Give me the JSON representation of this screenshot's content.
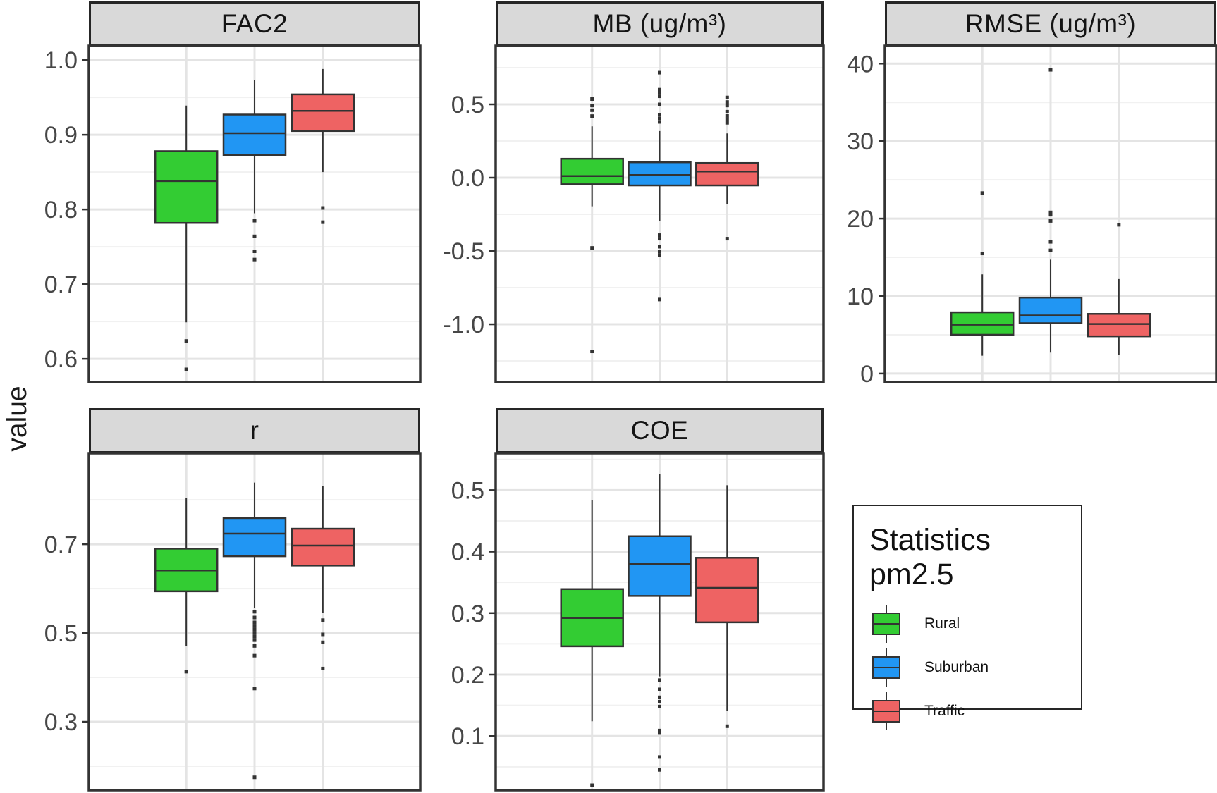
{
  "figure": {
    "y_axis_title": "value"
  },
  "legend": {
    "title": "Statistics pm2.5",
    "items": [
      {
        "label": "Rural",
        "color": "#33cc33"
      },
      {
        "label": "Suburban",
        "color": "#2196f3"
      },
      {
        "label": "Traffic",
        "color": "#ee6363"
      }
    ]
  },
  "style": {
    "box_stroke": "#333333",
    "grid_major": "#e4e4e4",
    "grid_minor": "#f1f1f1",
    "strip_bg": "#d9d9d9",
    "tick_label_color": "#474747",
    "panel_border": "#333333"
  },
  "chart_data": [
    {
      "type": "boxplot",
      "facet": "FAC2",
      "categories": [
        "Rural",
        "Suburban",
        "Traffic"
      ],
      "ylim": [
        0.569,
        1.019
      ],
      "yticks": [
        {
          "v": 1.0,
          "label": "1.0"
        },
        {
          "v": 0.9,
          "label": "0.9"
        },
        {
          "v": 0.8,
          "label": "0.8"
        },
        {
          "v": 0.7,
          "label": "0.7"
        },
        {
          "v": 0.6,
          "label": "0.6"
        }
      ],
      "yticks_minor": [
        0.95,
        0.85,
        0.75,
        0.65
      ],
      "series": [
        {
          "name": "Rural",
          "color": "#33cc33",
          "whisker_low": 0.649,
          "q1": 0.782,
          "median": 0.838,
          "q3": 0.878,
          "whisker_high": 0.939,
          "outliers": [
            0.624,
            0.586
          ]
        },
        {
          "name": "Suburban",
          "color": "#2196f3",
          "whisker_low": 0.795,
          "q1": 0.873,
          "median": 0.902,
          "q3": 0.927,
          "whisker_high": 0.973,
          "outliers": [
            0.785,
            0.764,
            0.744,
            0.733
          ]
        },
        {
          "name": "Traffic",
          "color": "#ee6363",
          "whisker_low": 0.85,
          "q1": 0.905,
          "median": 0.932,
          "q3": 0.954,
          "whisker_high": 0.988,
          "outliers": [
            0.802,
            0.783
          ]
        }
      ]
    },
    {
      "type": "boxplot",
      "facet": "MB (ug/m³)",
      "categories": [
        "Rural",
        "Suburban",
        "Traffic"
      ],
      "ylim": [
        -1.394,
        0.899
      ],
      "yticks": [
        {
          "v": 0.5,
          "label": "0.5"
        },
        {
          "v": 0.0,
          "label": "0.0"
        },
        {
          "v": -0.5,
          "label": "-0.5"
        },
        {
          "v": -1.0,
          "label": "-1.0"
        }
      ],
      "yticks_minor": [
        0.75,
        0.25,
        -0.25,
        -0.75,
        -1.25
      ],
      "series": [
        {
          "name": "Rural",
          "color": "#33cc33",
          "whisker_low": -0.195,
          "q1": -0.045,
          "median": 0.011,
          "q3": 0.129,
          "whisker_high": 0.35,
          "outliers": [
            0.536,
            0.492,
            0.46,
            0.42,
            -0.479,
            -1.185
          ]
        },
        {
          "name": "Suburban",
          "color": "#2196f3",
          "whisker_low": -0.298,
          "q1": -0.053,
          "median": 0.018,
          "q3": 0.105,
          "whisker_high": 0.318,
          "outliers": [
            0.716,
            0.6,
            0.58,
            0.555,
            0.5,
            0.43,
            0.405,
            0.38,
            -0.392,
            -0.416,
            -0.471,
            -0.503,
            -0.527,
            -0.831
          ]
        },
        {
          "name": "Traffic",
          "color": "#ee6363",
          "whisker_low": -0.179,
          "q1": -0.053,
          "median": 0.042,
          "q3": 0.1,
          "whisker_high": 0.302,
          "outliers": [
            0.547,
            0.516,
            0.492,
            0.45,
            0.421,
            0.398,
            0.374,
            -0.416
          ]
        }
      ]
    },
    {
      "type": "boxplot",
      "facet": "RMSE (ug/m³)",
      "categories": [
        "Rural",
        "Suburban",
        "Traffic"
      ],
      "ylim": [
        -1.1,
        42.3
      ],
      "yticks": [
        {
          "v": 40,
          "label": "40"
        },
        {
          "v": 30,
          "label": "30"
        },
        {
          "v": 20,
          "label": "20"
        },
        {
          "v": 10,
          "label": "10"
        },
        {
          "v": 0,
          "label": "0"
        }
      ],
      "yticks_minor": [
        35,
        25,
        15,
        5
      ],
      "series": [
        {
          "name": "Rural",
          "color": "#33cc33",
          "whisker_low": 2.3,
          "q1": 5.0,
          "median": 6.3,
          "q3": 7.9,
          "whisker_high": 12.8,
          "outliers": [
            23.3,
            15.5
          ]
        },
        {
          "name": "Suburban",
          "color": "#2196f3",
          "whisker_low": 2.7,
          "q1": 6.5,
          "median": 7.5,
          "q3": 9.8,
          "whisker_high": 14.7,
          "outliers": [
            39.2,
            20.8,
            20.5,
            19.7,
            17.0,
            15.9
          ]
        },
        {
          "name": "Traffic",
          "color": "#ee6363",
          "whisker_low": 2.4,
          "q1": 4.8,
          "median": 6.4,
          "q3": 7.7,
          "whisker_high": 12.2,
          "outliers": [
            19.2
          ]
        }
      ]
    },
    {
      "type": "boxplot",
      "facet": "r",
      "categories": [
        "Rural",
        "Suburban",
        "Traffic"
      ],
      "ylim": [
        0.146,
        0.905
      ],
      "yticks": [
        {
          "v": 0.7,
          "label": "0.7"
        },
        {
          "v": 0.5,
          "label": "0.5"
        },
        {
          "v": 0.3,
          "label": "0.3"
        }
      ],
      "yticks_minor": [
        0.8,
        0.6,
        0.4,
        0.2
      ],
      "series": [
        {
          "name": "Rural",
          "color": "#33cc33",
          "whisker_low": 0.471,
          "q1": 0.594,
          "median": 0.641,
          "q3": 0.69,
          "whisker_high": 0.804,
          "outliers": [
            0.413
          ]
        },
        {
          "name": "Suburban",
          "color": "#2196f3",
          "whisker_low": 0.556,
          "q1": 0.673,
          "median": 0.724,
          "q3": 0.759,
          "whisker_high": 0.839,
          "outliers": [
            0.548,
            0.535,
            0.524,
            0.516,
            0.508,
            0.5,
            0.492,
            0.484,
            0.471,
            0.449,
            0.375,
            0.175
          ]
        },
        {
          "name": "Traffic",
          "color": "#ee6363",
          "whisker_low": 0.546,
          "q1": 0.652,
          "median": 0.697,
          "q3": 0.735,
          "whisker_high": 0.831,
          "outliers": [
            0.529,
            0.497,
            0.479,
            0.42
          ]
        }
      ]
    },
    {
      "type": "boxplot",
      "facet": "COE",
      "categories": [
        "Rural",
        "Suburban",
        "Traffic"
      ],
      "ylim": [
        0.012,
        0.56
      ],
      "yticks": [
        {
          "v": 0.5,
          "label": "0.5"
        },
        {
          "v": 0.4,
          "label": "0.4"
        },
        {
          "v": 0.3,
          "label": "0.3"
        },
        {
          "v": 0.2,
          "label": "0.2"
        },
        {
          "v": 0.1,
          "label": "0.1"
        }
      ],
      "yticks_minor": [
        0.55,
        0.45,
        0.35,
        0.25,
        0.15,
        0.05
      ],
      "series": [
        {
          "name": "Rural",
          "color": "#33cc33",
          "whisker_low": 0.124,
          "q1": 0.246,
          "median": 0.292,
          "q3": 0.339,
          "whisker_high": 0.484,
          "outliers": [
            0.02
          ]
        },
        {
          "name": "Suburban",
          "color": "#2196f3",
          "whisker_low": 0.197,
          "q1": 0.328,
          "median": 0.38,
          "q3": 0.425,
          "whisker_high": 0.526,
          "outliers": [
            0.191,
            0.176,
            0.163,
            0.156,
            0.148,
            0.109,
            0.105,
            0.066,
            0.045
          ]
        },
        {
          "name": "Traffic",
          "color": "#ee6363",
          "whisker_low": 0.141,
          "q1": 0.285,
          "median": 0.341,
          "q3": 0.39,
          "whisker_high": 0.508,
          "outliers": [
            0.116
          ]
        }
      ]
    }
  ]
}
